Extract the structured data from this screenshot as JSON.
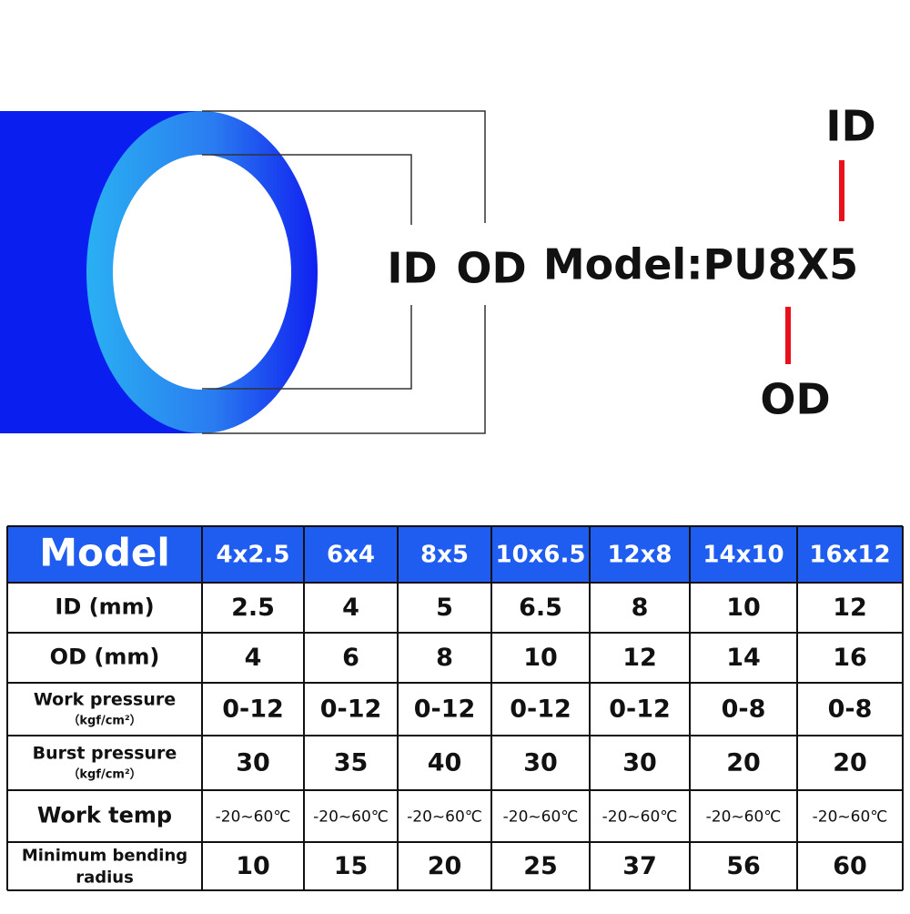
{
  "diagram": {
    "inner_label": "ID",
    "outer_label": "OD",
    "model": "Model:PU8X5",
    "top_label": "ID",
    "bottom_label": "OD"
  },
  "table": {
    "header": [
      "Model",
      "4x2.5",
      "6x4",
      "8x5",
      "10x6.5",
      "12x8",
      "14x10",
      "16x12"
    ],
    "rows": [
      {
        "label": "ID (mm)",
        "cells": [
          2.5,
          4,
          5,
          6.5,
          8,
          10,
          12
        ]
      },
      {
        "label": "OD (mm)",
        "cells": [
          4,
          6,
          8,
          10,
          12,
          14,
          16
        ]
      },
      {
        "label": "Work pressure",
        "unit": "（kgf/cm²）",
        "cells": [
          "0-12",
          "0-12",
          "0-12",
          "0-12",
          "0-12",
          "0-8",
          "0-8"
        ]
      },
      {
        "label": "Burst  pressure",
        "unit": "（kgf/cm²）",
        "cells": [
          30,
          35,
          40,
          30,
          30,
          20,
          20
        ]
      },
      {
        "label": "Work temp",
        "cells": [
          "-20~60℃",
          "-20~60℃",
          "-20~60℃",
          "-20~60℃",
          "-20~60℃",
          "-20~60℃",
          "-20~60℃"
        ]
      },
      {
        "label": "Minimum bending radius",
        "cells": [
          10,
          15,
          20,
          25,
          37,
          56,
          60
        ]
      }
    ]
  }
}
